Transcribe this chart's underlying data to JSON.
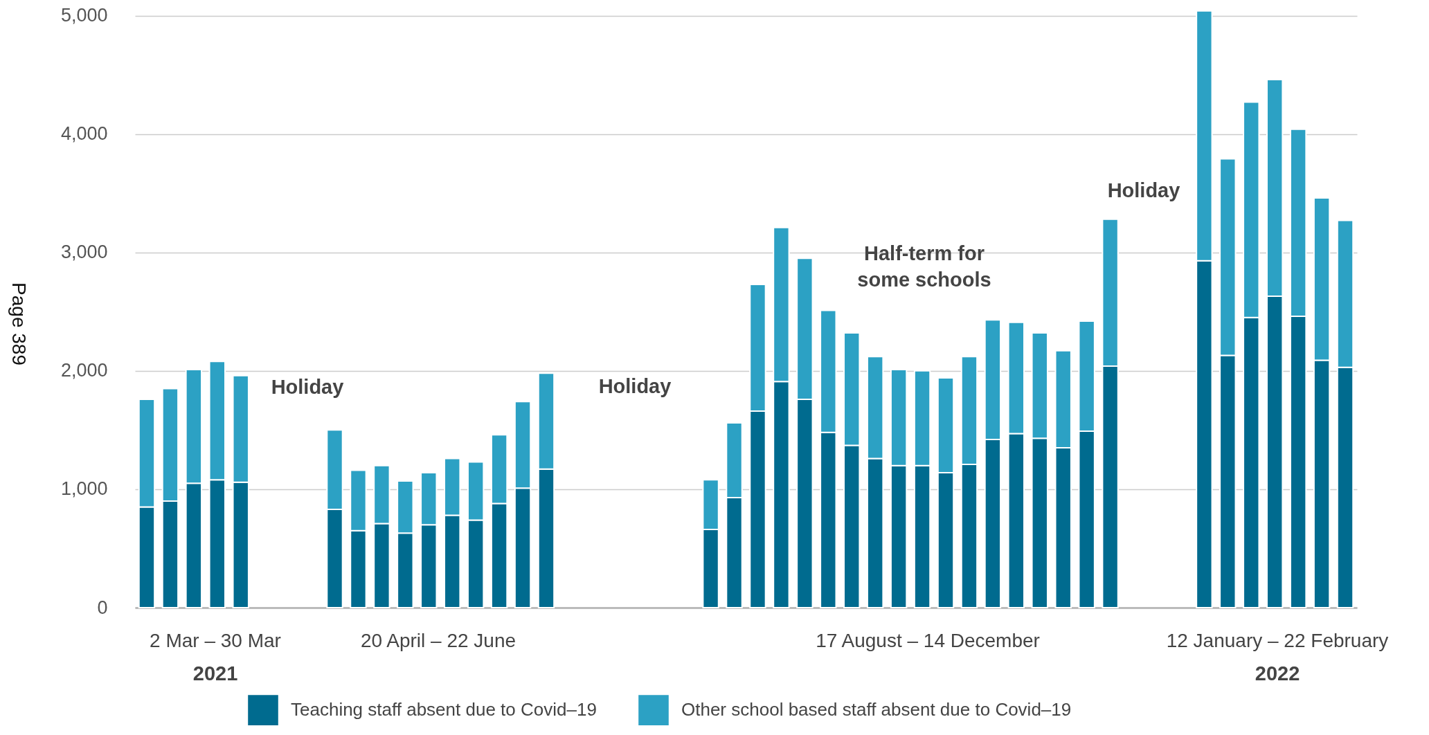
{
  "chart_data": {
    "type": "bar",
    "stacked": true,
    "categories": [
      null,
      null,
      null,
      null,
      null,
      null,
      null,
      null,
      null,
      null,
      null,
      null,
      null,
      null,
      null,
      null,
      null,
      null,
      null,
      null,
      null,
      null,
      null,
      null,
      null,
      null,
      null,
      null,
      null,
      null,
      null,
      null,
      null,
      null,
      null,
      null,
      null,
      null,
      null,
      null,
      null,
      null,
      null,
      null,
      null,
      null,
      null,
      null,
      null,
      null,
      null,
      null
    ],
    "series": [
      {
        "name": "Teaching staff absent due to Covid–19",
        "color": "#006b8f",
        "values": [
          850,
          900,
          1050,
          1080,
          1060,
          null,
          null,
          null,
          830,
          650,
          710,
          630,
          700,
          780,
          740,
          880,
          1010,
          1170,
          null,
          null,
          null,
          null,
          null,
          null,
          660,
          930,
          1660,
          1910,
          1760,
          1480,
          1370,
          1260,
          1200,
          1200,
          1140,
          1210,
          1420,
          1470,
          1430,
          1350,
          1490,
          2040,
          null,
          null,
          null,
          2930,
          2130,
          2450,
          2630,
          2460,
          2090,
          2030
        ]
      },
      {
        "name": "Other school based staff absent due to Covid–19",
        "color": "#2ca1c4",
        "values": [
          910,
          950,
          960,
          1000,
          900,
          null,
          null,
          null,
          670,
          510,
          490,
          440,
          440,
          480,
          490,
          580,
          730,
          810,
          null,
          null,
          null,
          null,
          null,
          null,
          420,
          630,
          1070,
          1300,
          1190,
          1030,
          950,
          860,
          810,
          800,
          800,
          910,
          1010,
          940,
          890,
          820,
          930,
          1240,
          null,
          null,
          null,
          2110,
          1660,
          1820,
          1830,
          1580,
          1370,
          1240
        ]
      }
    ],
    "ylim": [
      0,
      5050
    ],
    "yticks": [
      0,
      {
        "value": 1000,
        "label": "1,000"
      },
      {
        "value": 2000,
        "label": "2,000"
      },
      {
        "value": 3000,
        "label": "3,000"
      },
      {
        "value": 4000,
        "label": "4,000"
      },
      {
        "value": 5000,
        "label": "5,000"
      }
    ],
    "grid": "y",
    "tick_labels": "y",
    "legend": "bottom",
    "annotations": [
      "Holiday",
      "Holiday",
      "Holiday",
      "Half-term for some schools",
      "2 Mar – 30 Mar",
      "2021",
      "20 April – 22 June",
      "17 August – 14 December",
      "12 January – 22 February",
      "2022",
      "Page 389"
    ]
  }
}
